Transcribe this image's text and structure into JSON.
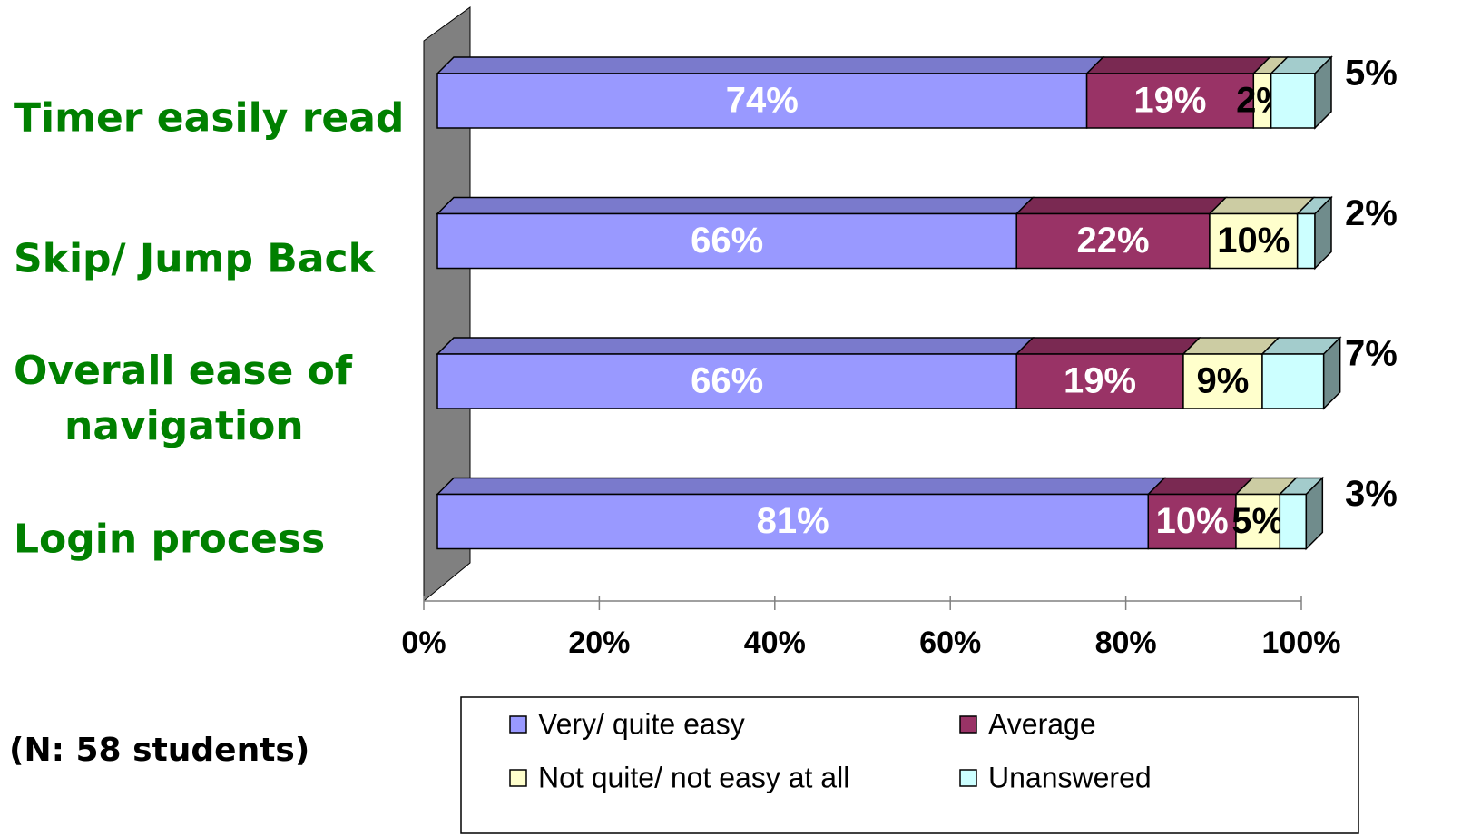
{
  "chart_data": {
    "type": "bar",
    "orientation": "horizontal",
    "stacked": true,
    "categories": [
      "Timer easily read",
      "Skip/ Jump Back",
      "Overall ease of navigation",
      "Login process"
    ],
    "series": [
      {
        "name": "Very/ quite easy",
        "color": "#9999ff",
        "values": [
          74,
          66,
          66,
          81
        ],
        "value_labels": [
          "74%",
          "66%",
          "66%",
          "81%"
        ]
      },
      {
        "name": "Average",
        "color": "#993366",
        "values": [
          19,
          22,
          19,
          10
        ],
        "value_labels": [
          "19%",
          "22%",
          "19%",
          "10%"
        ]
      },
      {
        "name": "Not quite/ not easy at all",
        "color": "#ffffcc",
        "values": [
          2,
          10,
          9,
          5
        ],
        "value_labels": [
          "2%",
          "10%",
          "9%",
          "5%"
        ]
      },
      {
        "name": "Unanswered",
        "color": "#ccffff",
        "values": [
          5,
          2,
          7,
          3
        ],
        "value_labels": [
          "5%",
          "2%",
          "7%",
          "3%"
        ]
      }
    ],
    "xlim": [
      0,
      100
    ],
    "xticks": [
      {
        "value": 0,
        "label": "0%"
      },
      {
        "value": 20,
        "label": "20%"
      },
      {
        "value": 40,
        "label": "40%"
      },
      {
        "value": 60,
        "label": "60%"
      },
      {
        "value": 80,
        "label": "80%"
      },
      {
        "value": 100,
        "label": "100%"
      }
    ],
    "legend": "bottom",
    "annotation": "(N: 58 students)"
  }
}
